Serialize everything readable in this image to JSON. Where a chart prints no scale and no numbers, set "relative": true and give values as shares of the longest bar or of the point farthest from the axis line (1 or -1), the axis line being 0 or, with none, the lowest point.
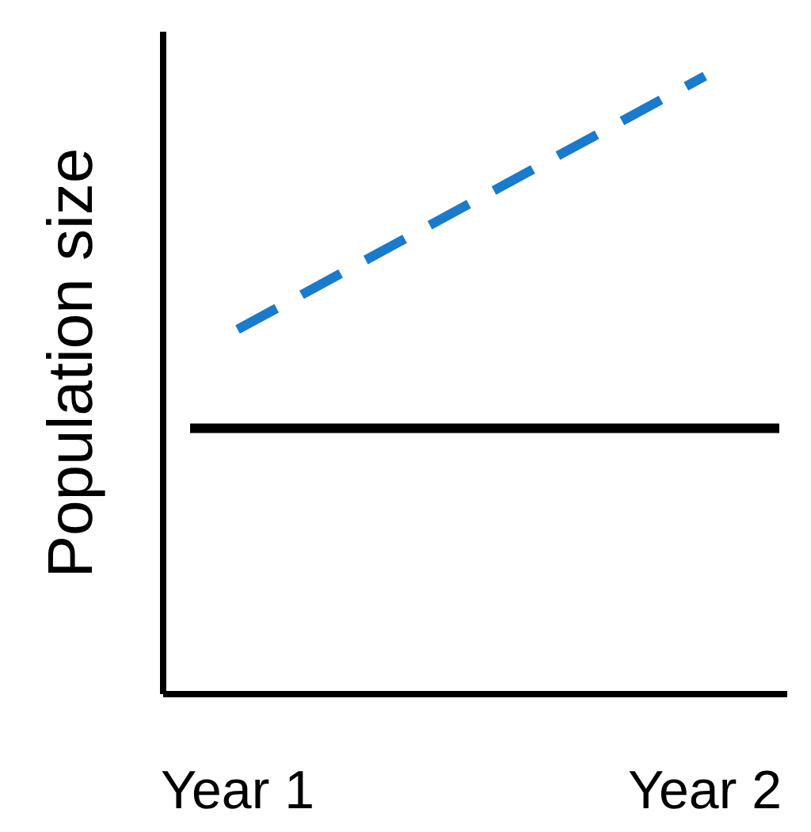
{
  "chart_data": {
    "type": "line",
    "relative": true,
    "ylabel": "Population size",
    "categories": [
      "Year 1",
      "Year 2"
    ],
    "marker": "none",
    "series": [
      {
        "color": "#1a7acb",
        "values": [
          0.59,
          1
        ],
        "line_style": "dashed"
      }
    ],
    "ref_lines": [
      {
        "axis": "y",
        "value": 0.43,
        "color": "#000000",
        "line_style": "solid"
      }
    ]
  }
}
